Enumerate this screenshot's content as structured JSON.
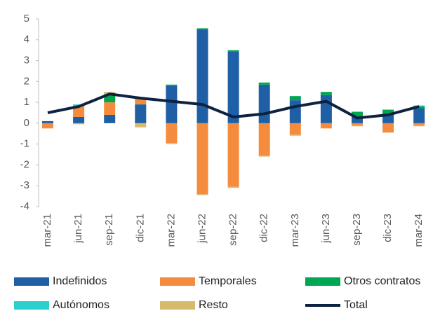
{
  "chart_data": {
    "type": "stacked_bar_line",
    "categories": [
      "mar-21",
      "jun-21",
      "sep-21",
      "dic-21",
      "mar-22",
      "jun-22",
      "sep-22",
      "dic-22",
      "mar-23",
      "jun-23",
      "sep-23",
      "dic-23",
      "mar-24"
    ],
    "series": [
      {
        "name": "Indefinidos",
        "color": "#1f5fa6",
        "values": [
          0.1,
          0.3,
          0.4,
          0.9,
          1.8,
          4.5,
          3.45,
          1.85,
          1.1,
          1.35,
          0.3,
          0.45,
          0.7
        ]
      },
      {
        "name": "Temporales",
        "color": "#f58b3c",
        "values": [
          -0.25,
          0.5,
          0.6,
          0.3,
          -0.95,
          -3.4,
          -3.05,
          -1.55,
          -0.55,
          -0.25,
          -0.1,
          -0.45,
          -0.1
        ]
      },
      {
        "name": "Otros contratos",
        "color": "#00a651",
        "values": [
          0,
          0,
          0.4,
          0,
          0.05,
          0.05,
          0.05,
          0.1,
          0.2,
          0.15,
          0.25,
          0.2,
          0.1
        ]
      },
      {
        "name": "Autónomos",
        "color": "#2bcfcf",
        "values": [
          0,
          0.1,
          0,
          0,
          0,
          0,
          0,
          0,
          0,
          0,
          0,
          0,
          0.05
        ]
      },
      {
        "name": "Resto",
        "color": "#d9b96b",
        "values": [
          0,
          -0.05,
          0.1,
          -0.2,
          -0.05,
          -0.05,
          -0.05,
          -0.05,
          -0.05,
          0,
          -0.05,
          0,
          -0.05
        ]
      },
      {
        "name": "Total",
        "color": "#0d2240",
        "line": true,
        "values": [
          0.5,
          0.8,
          1.4,
          1.2,
          1.05,
          0.9,
          0.3,
          0.45,
          0.8,
          1.05,
          0.25,
          0.4,
          0.8
        ]
      }
    ],
    "ylim": [
      -4,
      5
    ],
    "yticks": [
      -4,
      -3,
      -2,
      -1,
      0,
      1,
      2,
      3,
      4,
      5
    ],
    "grid": false
  }
}
